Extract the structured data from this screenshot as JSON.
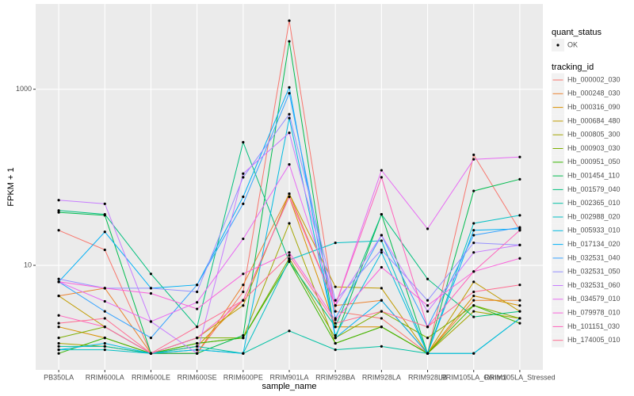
{
  "chart_data": {
    "type": "line",
    "log_y": true,
    "grid": true,
    "x_label": "sample_name",
    "y_label": "FPKM + 1",
    "categories": [
      "PB350LA",
      "RRIM600LA",
      "RRIM600LE",
      "RRIM600SE",
      "RRIM600PE",
      "RRIM901LA",
      "RRIM928BA",
      "RRIM928LA",
      "RRIM928LB",
      "RRIM105LA_Control",
      "RRIM105LA_Stressed"
    ],
    "ylim": [
      0.65,
      9300
    ],
    "yticks": [
      10,
      1000
    ],
    "point_legend_title": "quant_status",
    "point_legend_label": "OK",
    "point_color": "#000000",
    "legend_title": "tracking_id",
    "series": [
      {
        "name": "Hb_000002_030",
        "color": "#F8766D",
        "values": [
          25,
          15,
          1,
          1,
          5,
          6000,
          3,
          2.5,
          1,
          180,
          25
        ]
      },
      {
        "name": "Hb_000248_030",
        "color": "#EA8331",
        "values": [
          4.5,
          5.5,
          1,
          1,
          6,
          65,
          3.5,
          4,
          1,
          4,
          4
        ]
      },
      {
        "name": "Hb_000316_090",
        "color": "#D89000",
        "values": [
          2,
          1.5,
          1,
          1.2,
          4,
          60,
          2,
          2,
          1,
          4.5,
          3.5
        ]
      },
      {
        "name": "Hb_000684_480",
        "color": "#C09B00",
        "values": [
          4.5,
          2,
          1,
          1.5,
          3.5,
          65,
          5.7,
          5.5,
          1,
          6.5,
          3
        ]
      },
      {
        "name": "Hb_000805_300",
        "color": "#A3A500",
        "values": [
          1.3,
          1.2,
          1,
          1.3,
          1.5,
          30,
          1.3,
          2,
          1,
          3,
          2.5
        ]
      },
      {
        "name": "Hb_000903_030",
        "color": "#7CAE00",
        "values": [
          1.5,
          2,
          1,
          1.5,
          1.5,
          12,
          1.5,
          3,
          1.5,
          3.5,
          2.5
        ]
      },
      {
        "name": "Hb_000951_050",
        "color": "#39B600",
        "values": [
          1,
          1.5,
          1,
          1.3,
          1.5,
          11,
          1.3,
          2,
          1,
          3.5,
          2.2
        ]
      },
      {
        "name": "Hb_001454_110",
        "color": "#00BB4E",
        "values": [
          40,
          37,
          1,
          1,
          1.6,
          3500,
          1.5,
          38,
          1,
          70,
          95
        ]
      },
      {
        "name": "Hb_001579_040",
        "color": "#00BF7D",
        "values": [
          42,
          38,
          8,
          2,
          250,
          11,
          2,
          38,
          7,
          2.6,
          3
        ]
      },
      {
        "name": "Hb_002365_010",
        "color": "#00C1A3",
        "values": [
          1.2,
          1.2,
          1,
          1.2,
          1,
          1.8,
          1.1,
          1.2,
          1,
          1,
          2.5
        ]
      },
      {
        "name": "Hb_002988_020",
        "color": "#00BFC4",
        "values": [
          1.1,
          1.1,
          1,
          1.1,
          1,
          11.5,
          18,
          19,
          1,
          30,
          37
        ]
      },
      {
        "name": "Hb_005933_010",
        "color": "#00BAE0",
        "values": [
          1.1,
          1.3,
          1,
          1.1,
          1,
          470,
          1.6,
          14,
          1,
          1,
          2.5
        ]
      },
      {
        "name": "Hb_017134_020",
        "color": "#00B0F6",
        "values": [
          6.5,
          24,
          5.5,
          6,
          60,
          1050,
          1.5,
          4,
          1,
          25,
          26
        ]
      },
      {
        "name": "Hb_032531_040",
        "color": "#35A2FF",
        "values": [
          6.5,
          3,
          1.5,
          6,
          50,
          900,
          2.5,
          22,
          2,
          22,
          27
        ]
      },
      {
        "name": "Hb_032531_050",
        "color": "#9590FF",
        "values": [
          7,
          5.5,
          5.5,
          5,
          100,
          520,
          4,
          15,
          4,
          18,
          17
        ]
      },
      {
        "name": "Hb_032531_060",
        "color": "#C77CFF",
        "values": [
          55,
          50,
          2.3,
          1,
          110,
          320,
          3.5,
          22,
          3,
          14,
          17
        ]
      },
      {
        "name": "Hb_034579_010",
        "color": "#E76BF3",
        "values": [
          6.5,
          3.9,
          2.3,
          3.8,
          20,
          140,
          3.5,
          120,
          26,
          160,
          170
        ]
      },
      {
        "name": "Hb_079978_010",
        "color": "#FA62DB",
        "values": [
          6.5,
          5.5,
          4.8,
          3.2,
          8,
          14,
          2.4,
          9.5,
          3.5,
          8.5,
          12
        ]
      },
      {
        "name": "Hb_101151_030",
        "color": "#FF62BC",
        "values": [
          2.7,
          2,
          1,
          1.5,
          4,
          60,
          3.5,
          100,
          2,
          8.5,
          25
        ]
      },
      {
        "name": "Hb_174005_010",
        "color": "#FF6C91",
        "values": [
          2.2,
          2.5,
          1,
          2,
          4,
          13,
          2.2,
          3,
          2,
          5,
          6
        ]
      }
    ]
  }
}
